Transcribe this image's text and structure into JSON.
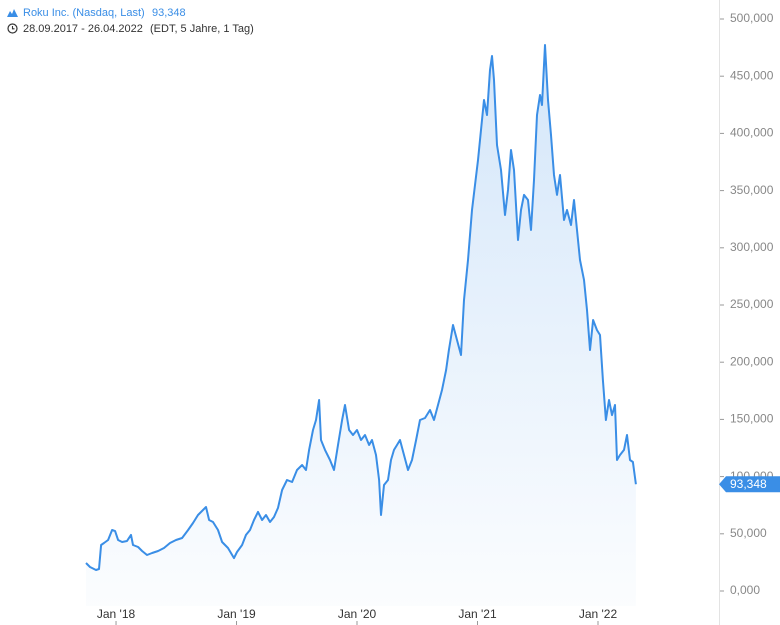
{
  "chart_data": {
    "type": "line",
    "title": "Roku Inc. (Nasdaq, Last)",
    "last_value": {
      "value": 93.348,
      "label": "93,348"
    },
    "date_range": "28.09.2017 - 26.04.2022",
    "subtitle": "(EDT, 5 Jahre, 1 Tag)",
    "xlim": [
      2017.037,
      2022.996
    ],
    "xticks": [
      {
        "value": 2018,
        "label": "Jan '18"
      },
      {
        "value": 2019,
        "label": "Jan '19"
      },
      {
        "value": 2020,
        "label": "Jan '20"
      },
      {
        "value": 2021,
        "label": "Jan '21"
      },
      {
        "value": 2022,
        "label": "Jan '22"
      }
    ],
    "ylim": [
      0,
      500
    ],
    "yticks": [
      {
        "value": 0,
        "label": "0,000"
      },
      {
        "value": 50,
        "label": "50,000"
      },
      {
        "value": 100,
        "label": "100,000"
      },
      {
        "value": 150,
        "label": "150,000"
      },
      {
        "value": 200,
        "label": "200,000"
      },
      {
        "value": 250,
        "label": "250,000"
      },
      {
        "value": 300,
        "label": "300,000"
      },
      {
        "value": 350,
        "label": "350,000"
      },
      {
        "value": 400,
        "label": "400,000"
      },
      {
        "value": 450,
        "label": "450,000"
      },
      {
        "value": 500,
        "label": "500,000"
      }
    ],
    "area_fill": true,
    "x": [
      2017.751,
      2017.784,
      2017.834,
      2017.859,
      2017.876,
      2017.9,
      2017.934,
      2017.967,
      2017.992,
      2018.017,
      2018.05,
      2018.091,
      2018.124,
      2018.141,
      2018.183,
      2018.216,
      2018.257,
      2018.299,
      2018.349,
      2018.398,
      2018.448,
      2018.498,
      2018.548,
      2018.598,
      2018.639,
      2018.68,
      2018.722,
      2018.747,
      2018.772,
      2018.805,
      2018.846,
      2018.88,
      2018.929,
      2018.979,
      2019.004,
      2019.046,
      2019.079,
      2019.112,
      2019.145,
      2019.178,
      2019.212,
      2019.245,
      2019.278,
      2019.311,
      2019.344,
      2019.378,
      2019.419,
      2019.461,
      2019.502,
      2019.544,
      2019.577,
      2019.602,
      2019.635,
      2019.66,
      2019.685,
      2019.701,
      2019.734,
      2019.776,
      2019.809,
      2019.842,
      2019.876,
      2019.9,
      2019.934,
      2019.967,
      2020.0,
      2020.033,
      2020.066,
      2020.1,
      2020.124,
      2020.158,
      2020.183,
      2020.199,
      2020.224,
      2020.257,
      2020.282,
      2020.307,
      2020.332,
      2020.357,
      2020.39,
      2020.423,
      2020.456,
      2020.49,
      2020.523,
      2020.564,
      2020.606,
      2020.639,
      2020.672,
      2020.705,
      2020.739,
      2020.763,
      2020.797,
      2020.83,
      2020.863,
      2020.888,
      2020.921,
      2020.954,
      2020.979,
      2021.004,
      2021.029,
      2021.054,
      2021.079,
      2021.104,
      2021.12,
      2021.137,
      2021.162,
      2021.195,
      2021.228,
      2021.253,
      2021.278,
      2021.303,
      2021.336,
      2021.361,
      2021.386,
      2021.419,
      2021.444,
      2021.469,
      2021.494,
      2021.519,
      2021.535,
      2021.56,
      2021.585,
      2021.61,
      2021.635,
      2021.66,
      2021.685,
      2021.718,
      2021.743,
      2021.776,
      2021.801,
      2021.826,
      2021.851,
      2021.884,
      2021.909,
      2021.934,
      2021.959,
      2021.992,
      2022.017,
      2022.041,
      2022.066,
      2022.091,
      2022.116,
      2022.141,
      2022.158,
      2022.183,
      2022.216,
      2022.241,
      2022.266,
      2022.29,
      2022.315
    ],
    "series": [
      {
        "name": "Roku Inc. (Nasdaq, Last)",
        "color": "#3a8ee6",
        "values": [
          24.5,
          21.0,
          18.4,
          19.2,
          40.2,
          42.0,
          44.6,
          53.3,
          52.4,
          44.6,
          42.8,
          43.7,
          49.0,
          40.2,
          38.5,
          35.0,
          31.5,
          33.2,
          35.0,
          37.6,
          42.0,
          44.6,
          46.3,
          53.3,
          59.4,
          66.4,
          70.8,
          73.4,
          62.1,
          60.3,
          53.3,
          42.8,
          37.6,
          28.8,
          34.1,
          40.2,
          49.0,
          53.3,
          62.1,
          69.1,
          62.1,
          66.4,
          60.3,
          64.7,
          72.6,
          88.3,
          97.0,
          95.3,
          105.8,
          110.1,
          105.8,
          123.3,
          140.7,
          149.5,
          167.0,
          132.0,
          123.3,
          114.5,
          105.8,
          127.6,
          149.5,
          162.6,
          140.7,
          136.4,
          140.7,
          132.0,
          136.4,
          127.6,
          132.0,
          118.9,
          97.0,
          66.4,
          92.7,
          97.0,
          114.5,
          123.3,
          127.6,
          132.0,
          118.9,
          105.8,
          114.5,
          132.0,
          149.5,
          151.2,
          158.2,
          149.5,
          162.6,
          175.7,
          193.2,
          210.7,
          232.5,
          219.4,
          206.3,
          254.4,
          289.3,
          333.0,
          354.9,
          376.7,
          403.0,
          429.2,
          416.1,
          455.4,
          467.7,
          446.7,
          389.9,
          368.0,
          328.7,
          350.5,
          385.5,
          368.0,
          306.8,
          333.0,
          346.2,
          341.8,
          315.6,
          359.3,
          416.1,
          433.6,
          424.8,
          477.3,
          429.2,
          398.6,
          363.6,
          346.2,
          363.6,
          324.3,
          333.0,
          319.9,
          341.8,
          315.6,
          289.3,
          271.9,
          245.6,
          210.7,
          236.9,
          228.1,
          223.8,
          184.4,
          149.5,
          167.0,
          153.8,
          162.6,
          114.5,
          118.9,
          123.3,
          136.4,
          114.5,
          112.8,
          93.348
        ]
      }
    ]
  }
}
